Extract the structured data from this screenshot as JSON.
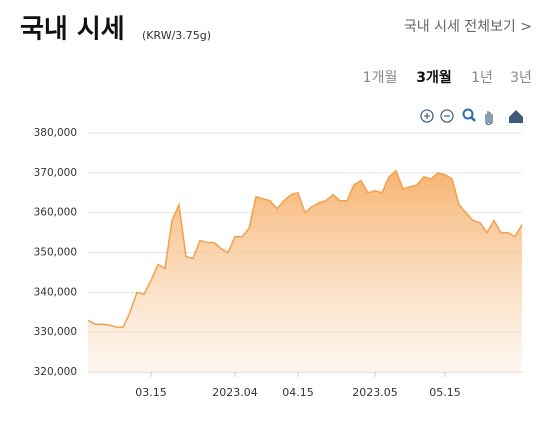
{
  "header": {
    "title": "국내 시세",
    "unit": "(KRW/3.75g)",
    "link": "국내 시세 전체보기 >"
  },
  "tabs": [
    "1개월",
    "3개월",
    "1년",
    "3년"
  ],
  "selected_tab": 1,
  "chart_data": {
    "type": "area",
    "categories": [
      null,
      null,
      null,
      null,
      null,
      null,
      null,
      null,
      null,
      "03.15",
      null,
      null,
      null,
      null,
      null,
      null,
      null,
      null,
      null,
      null,
      null,
      "2023.04",
      null,
      null,
      null,
      null,
      null,
      null,
      null,
      null,
      "04.15",
      null,
      null,
      null,
      null,
      null,
      null,
      null,
      null,
      null,
      null,
      "2023.05",
      null,
      null,
      null,
      null,
      null,
      null,
      null,
      null,
      null,
      "05.15",
      null,
      null,
      null,
      null,
      null,
      null,
      null,
      null,
      null,
      null,
      null
    ],
    "series": [
      {
        "color": "#f3a04c",
        "values": [
          333000,
          332000,
          332000,
          331800,
          331300,
          331200,
          335000,
          340000,
          339500,
          343000,
          347000,
          346000,
          358000,
          362000,
          349000,
          348500,
          353000,
          352500,
          352500,
          351000,
          350000,
          354000,
          354000,
          356000,
          364000,
          363500,
          363000,
          361000,
          363000,
          364500,
          365000,
          360000,
          361500,
          362500,
          363000,
          364500,
          363000,
          363000,
          367000,
          368000,
          365000,
          365500,
          365000,
          369000,
          370500,
          366000,
          366500,
          367000,
          369000,
          368500,
          370000,
          369500,
          368500,
          362000,
          360000,
          358000,
          357500,
          355000,
          358000,
          355000,
          355000,
          354000,
          357000
        ]
      }
    ],
    "ylim": [
      320000,
      380000
    ],
    "yticks": [
      {
        "value": 320000,
        "label": "320,000"
      },
      {
        "value": 330000,
        "label": "330,000"
      },
      {
        "value": 340000,
        "label": "340,000"
      },
      {
        "value": 350000,
        "label": "350,000"
      },
      {
        "value": 360000,
        "label": "360,000"
      },
      {
        "value": 370000,
        "label": "370,000"
      },
      {
        "value": 380000,
        "label": "380,000"
      }
    ],
    "grid": true
  }
}
